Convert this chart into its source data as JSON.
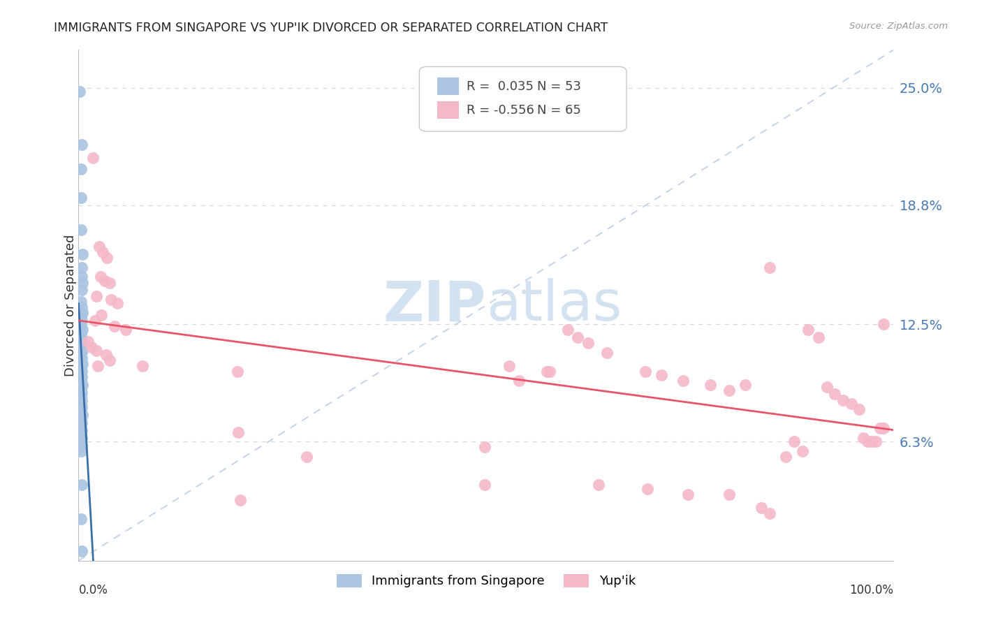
{
  "title": "IMMIGRANTS FROM SINGAPORE VS YUP'IK DIVORCED OR SEPARATED CORRELATION CHART",
  "source": "Source: ZipAtlas.com",
  "ylabel": "Divorced or Separated",
  "ytick_labels": [
    "25.0%",
    "18.8%",
    "12.5%",
    "6.3%"
  ],
  "ytick_values": [
    0.25,
    0.188,
    0.125,
    0.063
  ],
  "xmin": 0.0,
  "xmax": 1.0,
  "ymin": 0.0,
  "ymax": 0.27,
  "legend_blue_r": " 0.035",
  "legend_blue_n": "53",
  "legend_pink_r": "-0.556",
  "legend_pink_n": "65",
  "blue_color": "#aac4e2",
  "blue_line_color": "#3a6ea8",
  "pink_color": "#f5b8c8",
  "pink_line_color": "#e8546a",
  "ref_line_color": "#c0d0e8",
  "grid_color": "#d8d8d8",
  "watermark_color": "#ccddef",
  "blue_scatter": [
    [
      0.001,
      0.248
    ],
    [
      0.004,
      0.22
    ],
    [
      0.003,
      0.207
    ],
    [
      0.003,
      0.192
    ],
    [
      0.003,
      0.175
    ],
    [
      0.005,
      0.162
    ],
    [
      0.004,
      0.155
    ],
    [
      0.004,
      0.15
    ],
    [
      0.005,
      0.147
    ],
    [
      0.004,
      0.143
    ],
    [
      0.003,
      0.137
    ],
    [
      0.004,
      0.134
    ],
    [
      0.005,
      0.131
    ],
    [
      0.003,
      0.129
    ],
    [
      0.004,
      0.127
    ],
    [
      0.003,
      0.124
    ],
    [
      0.005,
      0.122
    ],
    [
      0.003,
      0.12
    ],
    [
      0.003,
      0.118
    ],
    [
      0.004,
      0.116
    ],
    [
      0.003,
      0.114
    ],
    [
      0.004,
      0.113
    ],
    [
      0.005,
      0.111
    ],
    [
      0.003,
      0.109
    ],
    [
      0.004,
      0.107
    ],
    [
      0.003,
      0.106
    ],
    [
      0.005,
      0.104
    ],
    [
      0.003,
      0.102
    ],
    [
      0.004,
      0.1
    ],
    [
      0.003,
      0.098
    ],
    [
      0.004,
      0.097
    ],
    [
      0.003,
      0.095
    ],
    [
      0.005,
      0.093
    ],
    [
      0.003,
      0.091
    ],
    [
      0.004,
      0.089
    ],
    [
      0.003,
      0.087
    ],
    [
      0.004,
      0.085
    ],
    [
      0.003,
      0.083
    ],
    [
      0.004,
      0.081
    ],
    [
      0.003,
      0.079
    ],
    [
      0.005,
      0.077
    ],
    [
      0.003,
      0.075
    ],
    [
      0.004,
      0.073
    ],
    [
      0.003,
      0.071
    ],
    [
      0.004,
      0.069
    ],
    [
      0.003,
      0.067
    ],
    [
      0.004,
      0.065
    ],
    [
      0.003,
      0.063
    ],
    [
      0.004,
      0.061
    ],
    [
      0.003,
      0.058
    ],
    [
      0.004,
      0.04
    ],
    [
      0.003,
      0.022
    ],
    [
      0.004,
      0.005
    ]
  ],
  "pink_scatter": [
    [
      0.018,
      0.213
    ],
    [
      0.025,
      0.166
    ],
    [
      0.03,
      0.163
    ],
    [
      0.035,
      0.16
    ],
    [
      0.027,
      0.15
    ],
    [
      0.032,
      0.148
    ],
    [
      0.038,
      0.147
    ],
    [
      0.022,
      0.14
    ],
    [
      0.04,
      0.138
    ],
    [
      0.048,
      0.136
    ],
    [
      0.028,
      0.13
    ],
    [
      0.02,
      0.127
    ],
    [
      0.044,
      0.124
    ],
    [
      0.058,
      0.122
    ],
    [
      0.012,
      0.116
    ],
    [
      0.016,
      0.113
    ],
    [
      0.022,
      0.111
    ],
    [
      0.034,
      0.109
    ],
    [
      0.038,
      0.106
    ],
    [
      0.024,
      0.103
    ],
    [
      0.078,
      0.103
    ],
    [
      0.195,
      0.1
    ],
    [
      0.28,
      0.055
    ],
    [
      0.54,
      0.095
    ],
    [
      0.575,
      0.1
    ],
    [
      0.6,
      0.122
    ],
    [
      0.612,
      0.118
    ],
    [
      0.625,
      0.115
    ],
    [
      0.648,
      0.11
    ],
    [
      0.528,
      0.103
    ],
    [
      0.695,
      0.1
    ],
    [
      0.715,
      0.098
    ],
    [
      0.742,
      0.095
    ],
    [
      0.775,
      0.093
    ],
    [
      0.798,
      0.09
    ],
    [
      0.818,
      0.093
    ],
    [
      0.848,
      0.155
    ],
    [
      0.895,
      0.122
    ],
    [
      0.908,
      0.118
    ],
    [
      0.918,
      0.092
    ],
    [
      0.928,
      0.088
    ],
    [
      0.938,
      0.085
    ],
    [
      0.948,
      0.083
    ],
    [
      0.958,
      0.08
    ],
    [
      0.963,
      0.065
    ],
    [
      0.968,
      0.063
    ],
    [
      0.973,
      0.063
    ],
    [
      0.978,
      0.063
    ],
    [
      0.983,
      0.07
    ],
    [
      0.988,
      0.07
    ],
    [
      0.498,
      0.06
    ],
    [
      0.196,
      0.068
    ],
    [
      0.498,
      0.04
    ],
    [
      0.638,
      0.04
    ],
    [
      0.698,
      0.038
    ],
    [
      0.748,
      0.035
    ],
    [
      0.798,
      0.035
    ],
    [
      0.838,
      0.028
    ],
    [
      0.848,
      0.025
    ],
    [
      0.868,
      0.055
    ],
    [
      0.878,
      0.063
    ],
    [
      0.888,
      0.058
    ],
    [
      0.578,
      0.1
    ],
    [
      0.198,
      0.032
    ],
    [
      0.988,
      0.125
    ]
  ]
}
